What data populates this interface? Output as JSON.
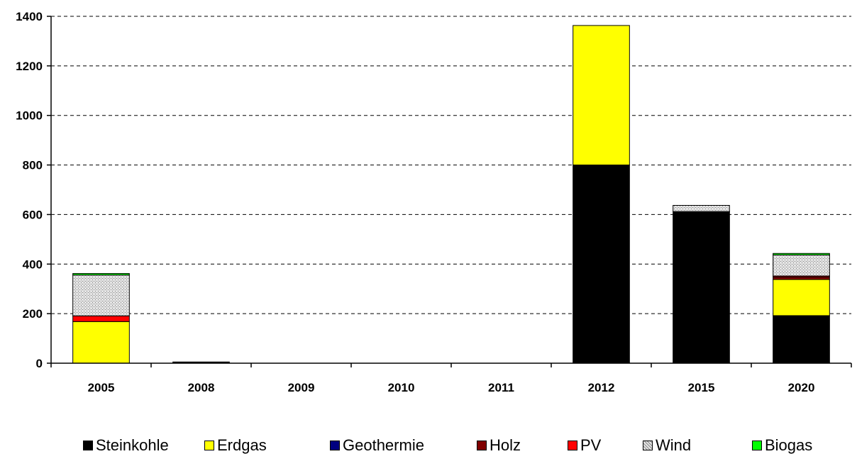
{
  "chart_data": {
    "type": "bar",
    "stacked": true,
    "categories": [
      "2005",
      "2008",
      "2009",
      "2010",
      "2011",
      "2012",
      "2015",
      "2020"
    ],
    "ylim": [
      0,
      1400
    ],
    "yticks": [
      0,
      200,
      400,
      600,
      800,
      1000,
      1200,
      1400
    ],
    "grid": "horizontal-dashed",
    "legend_position": "bottom",
    "series": [
      {
        "name": "Steinkohle",
        "color": "#000000",
        "values": [
          0,
          5,
          0,
          0,
          0,
          800,
          612,
          192
        ]
      },
      {
        "name": "Erdgas",
        "color": "#FFFF00",
        "values": [
          168,
          0,
          0,
          0,
          0,
          563,
          0,
          146
        ]
      },
      {
        "name": "Geothermie",
        "color": "#000080",
        "values": [
          0,
          0,
          0,
          0,
          0,
          0,
          0,
          0
        ]
      },
      {
        "name": "Holz",
        "color": "#800000",
        "values": [
          0,
          0,
          0,
          0,
          0,
          0,
          0,
          10
        ]
      },
      {
        "name": "PV",
        "color": "#FF0000",
        "values": [
          23,
          0,
          0,
          0,
          0,
          0,
          0,
          4
        ]
      },
      {
        "name": "Wind",
        "color": "#C8C8C8",
        "pattern": "dotted",
        "values": [
          165,
          0,
          0,
          0,
          0,
          0,
          25,
          85
        ]
      },
      {
        "name": "Biogas",
        "color": "#00FF00",
        "values": [
          6,
          0,
          0,
          0,
          0,
          0,
          0,
          6
        ]
      }
    ]
  }
}
